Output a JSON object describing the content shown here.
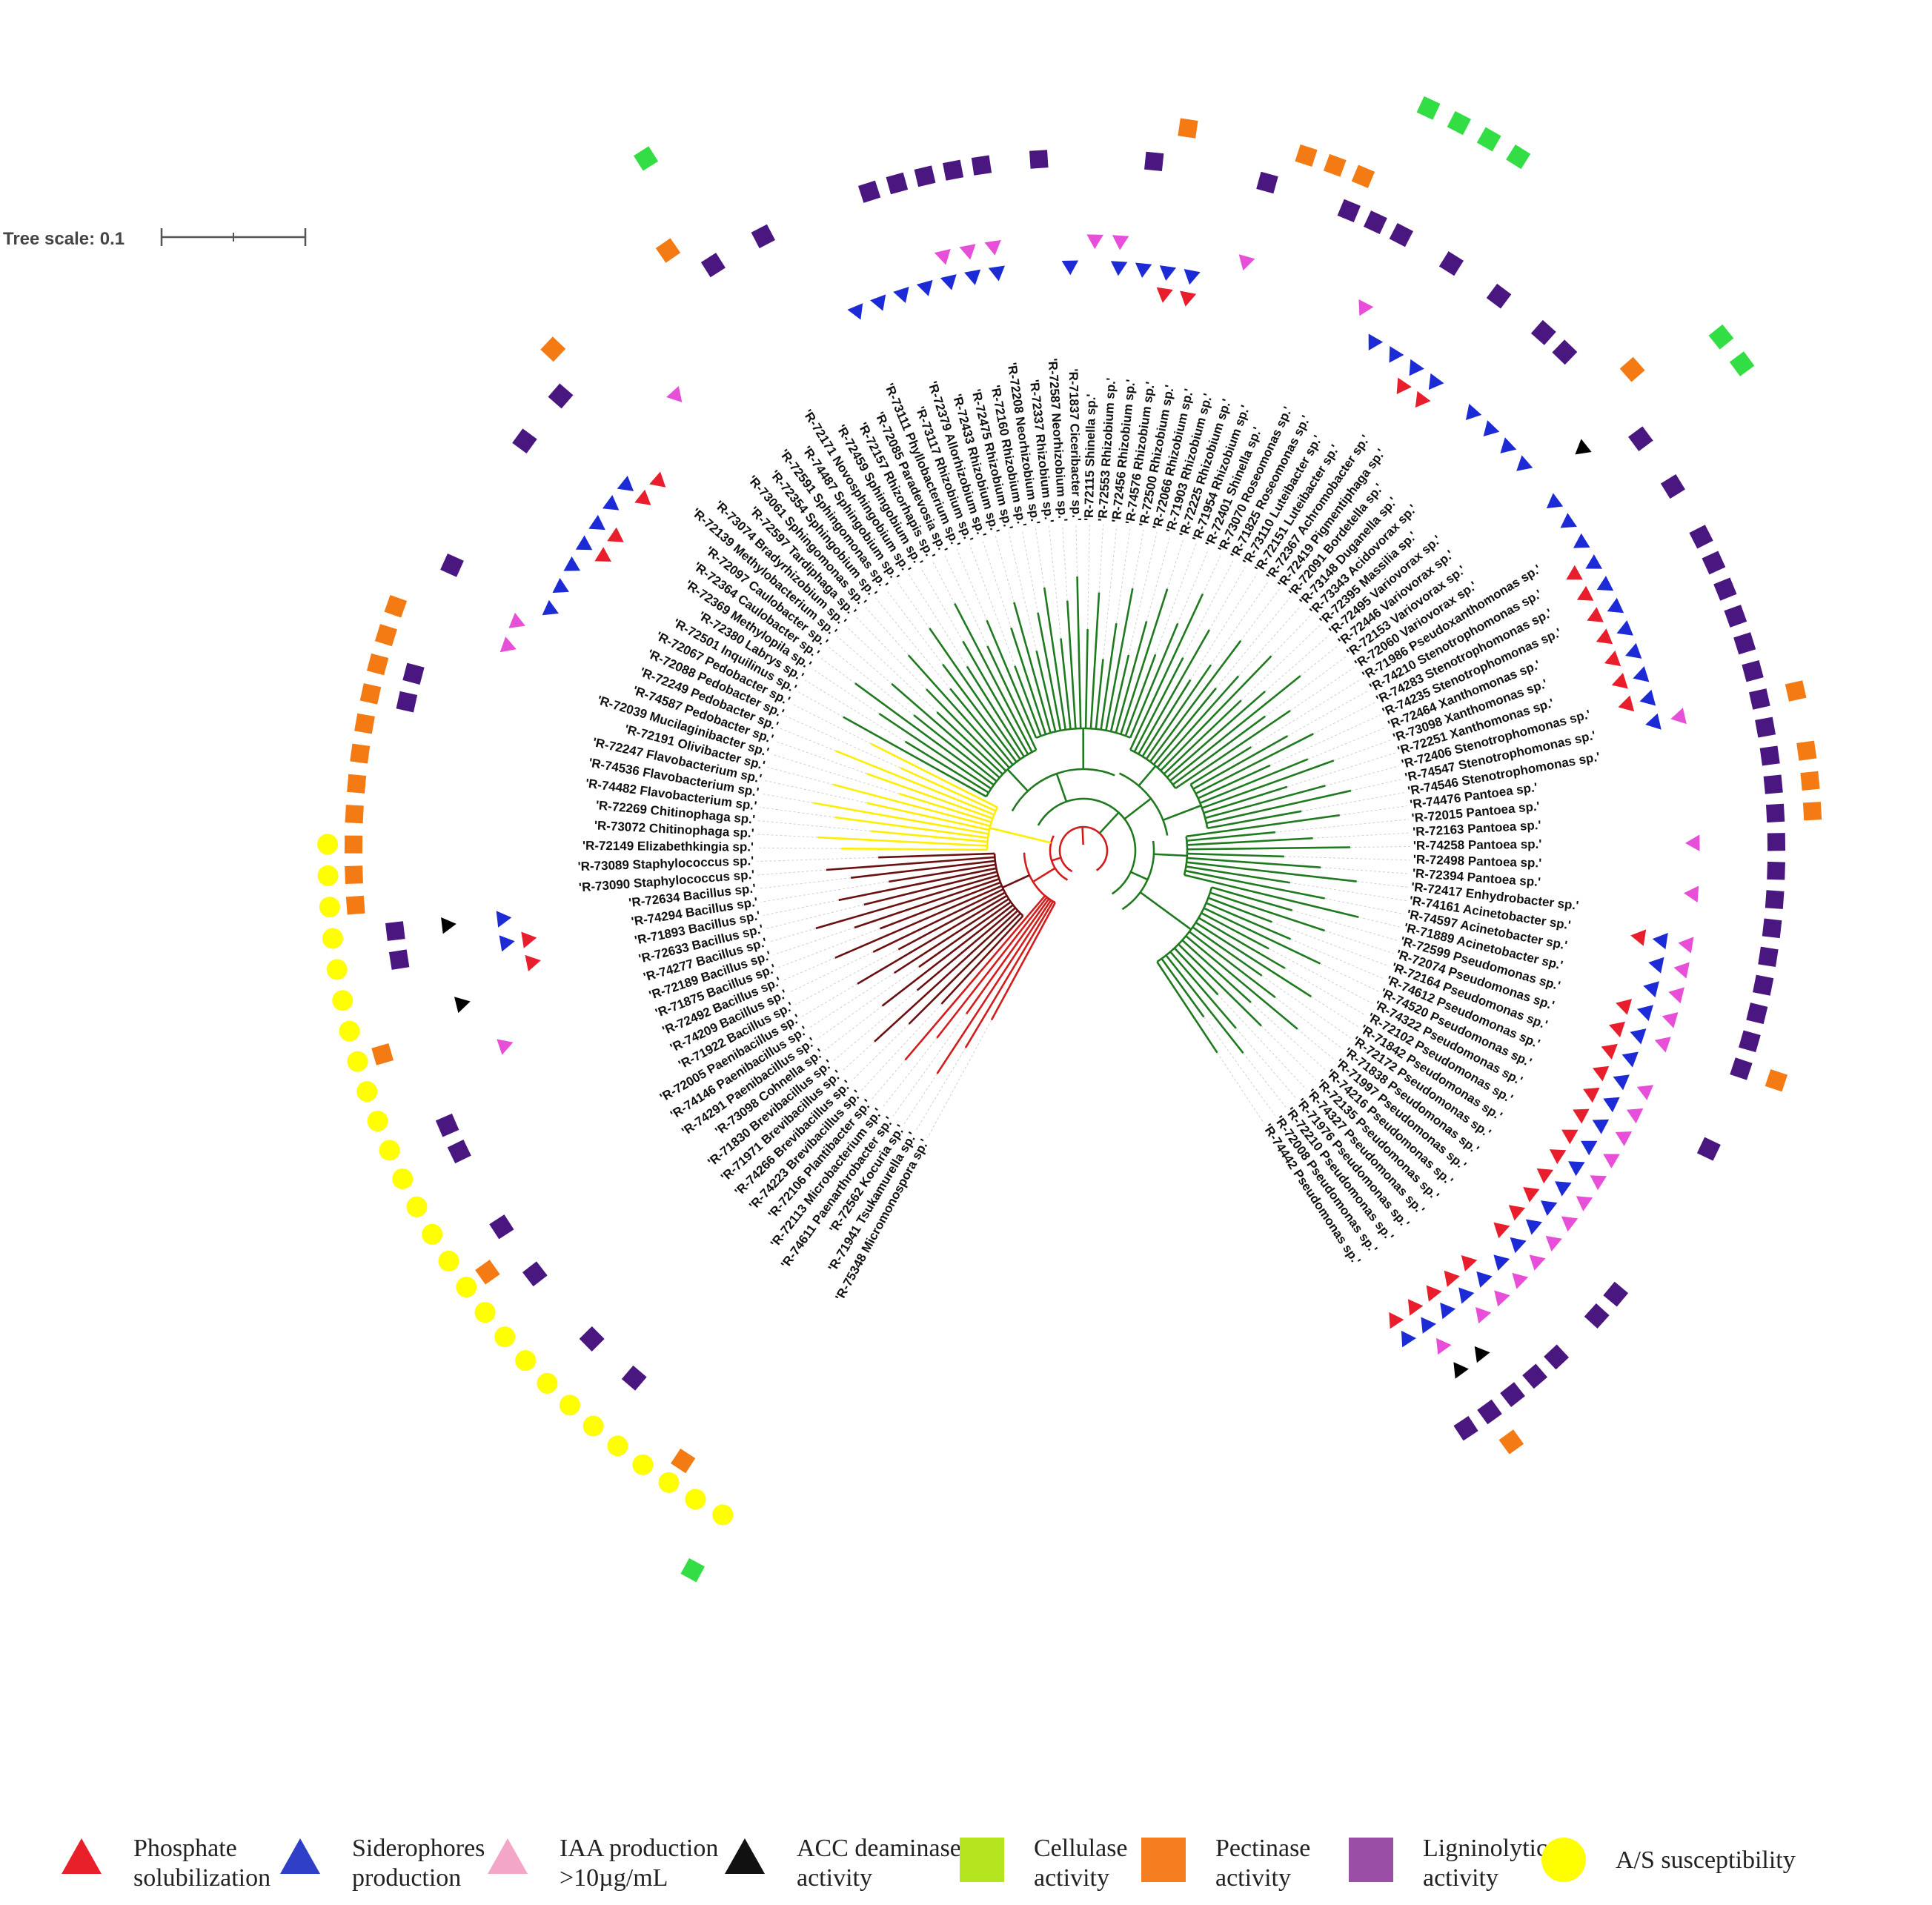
{
  "tree_scale_label": "Tree scale: 0.1",
  "legend": [
    {
      "key": "phosphate",
      "shape": "triangle",
      "color": "#e8202a",
      "lines": [
        "Phosphate",
        "solubilization"
      ]
    },
    {
      "key": "siderophores",
      "shape": "triangle",
      "color": "#2f3fc8",
      "lines": [
        "Siderophores",
        "production"
      ]
    },
    {
      "key": "iaa",
      "shape": "triangle",
      "color": "#f4a6c8",
      "lines": [
        "IAA production",
        ">10µg/mL"
      ]
    },
    {
      "key": "acc",
      "shape": "triangle",
      "color": "#111111",
      "lines": [
        "ACC deaminase",
        "activity"
      ]
    },
    {
      "key": "cellulase",
      "shape": "square",
      "color": "#b4e51e",
      "lines": [
        "Cellulase",
        "activity"
      ]
    },
    {
      "key": "pectinase",
      "shape": "square",
      "color": "#f57f20",
      "lines": [
        "Pectinase",
        "activity"
      ]
    },
    {
      "key": "ligninolytic",
      "shape": "square",
      "color": "#9b4ea6",
      "lines": [
        "Ligninolytic",
        "activity"
      ]
    },
    {
      "key": "as",
      "shape": "circle",
      "color": "#ffff00",
      "lines": [
        "A/S susceptibility"
      ]
    }
  ],
  "clade_colors": {
    "actino": "#d31c1c",
    "firmicutes": "#6b1010",
    "bacteroidetes": "#ffee00",
    "proteo": "#1f7a1f"
  },
  "marker_colors": {
    "phosphate": "#e81e2c",
    "siderophores": "#1c2bd6",
    "iaa": "#e84fd8",
    "acc": "#000000",
    "cellulase": "#33dd44",
    "pectinase": "#f47b14",
    "ligninolytic": "#4a1680",
    "as": "#ffff00"
  },
  "leaves": [
    "'R-75348 Micromonospora sp.'",
    "'R-71941 Tsukamurella sp.'",
    "'R-72562 Kocuria sp.'",
    "'R-74611 Paenarthrobacter sp.'",
    "'R-72113 Microbacterium sp.'",
    "'R-72106 Plantibacter sp.'",
    "'R-74223 Brevibacillus sp.'",
    "'R-74266 Brevibacillus sp.'",
    "'R-71971 Brevibacillus sp.'",
    "'R-71830 Brevibacillus sp.'",
    "'R-73098 Cohnella sp.'",
    "'R-74291 Paenibacillus sp.'",
    "'R-74146 Paenibacillus sp.'",
    "'R-72005 Paenibacillus sp.'",
    "'R-71922 Bacillus sp.'",
    "'R-74209 Bacillus sp.'",
    "'R-72492 Bacillus sp.'",
    "'R-71875 Bacillus sp.'",
    "'R-72189 Bacillus sp.'",
    "'R-74277 Bacillus sp.'",
    "'R-72633 Bacillus sp.'",
    "'R-71893 Bacillus sp.'",
    "'R-74294 Bacillus sp.'",
    "'R-72634 Bacillus sp.'",
    "'R-73090 Staphylococcus sp.'",
    "'R-73089 Staphylococcus sp.'",
    "'R-72149 Elizabethkingia sp.'",
    "'R-73072 Chitinophaga sp.'",
    "'R-72269 Chitinophaga sp.'",
    "'R-74482 Flavobacterium sp.'",
    "'R-74536 Flavobacterium sp.'",
    "'R-72247 Flavobacterium sp.'",
    "'R-72191 Olivibacter sp.'",
    "'R-72039 Mucilaginibacter sp.'",
    "'R-74587 Pedobacter sp.'",
    "'R-72249 Pedobacter sp.'",
    "'R-72088 Pedobacter sp.'",
    "'R-72067 Pedobacter sp.'",
    "'R-72501 Inquilinus sp.'",
    "'R-72380 Labrys sp.'",
    "'R-72369 Methylopila sp.'",
    "'R-72364 Caulobacter sp.'",
    "'R-72097 Caulobacter sp.'",
    "'R-72139 Methylobacterium sp.'",
    "'R-73074 Bradyrhizobium sp.'",
    "'R-72597 Tardiphaga sp.'",
    "'R-73061 Sphingomonas sp.'",
    "'R-72354 Sphingobium sp.'",
    "'R-72591 Sphingomonas sp.'",
    "'R-74487 Sphingobium sp.'",
    "'R-72171 Novosphingobium sp.'",
    "'R-72459 Sphingobium sp.'",
    "'R-72157 Rhizorhapis sp.'",
    "'R-72085 Paradevosia sp.'",
    "'R-73111 Phyllobacterium sp.'",
    "'R-73117 Rhizobium sp.'",
    "'R-72379 Allorhizobium sp.'",
    "'R-72433 Rhizobium sp.'",
    "'R-72475 Rhizobium sp.'",
    "'R-72160 Rhizobium sp.'",
    "'R-72208 Neorhizobium sp.'",
    "'R-72337 Rhizobium sp.'",
    "'R-72587 Neorhizobium sp.'",
    "'R-71837 Ciceribacter sp.'",
    "'R-72115 Shinella sp.'",
    "'R-72553 Rhizobium sp.'",
    "'R-72456 Rhizobium sp.'",
    "'R-74576 Rhizobium sp.'",
    "'R-72500 Rhizobium sp.'",
    "'R-72066 Rhizobium sp.'",
    "'R-71903 Rhizobium sp.'",
    "'R-72225 Rhizobium sp.'",
    "'R-71954 Rhizobium sp.'",
    "'R-72401 Shinella sp.'",
    "'R-73070 Roseomonas sp.'",
    "'R-71825 Roseomonas sp.'",
    "'R-73110 Luteibacter sp.'",
    "'R-72151 Luteibacter sp.'",
    "'R-72367 Achromobacter sp.'",
    "'R-72419 Pigmentiphaga sp.'",
    "'R-72091 Bordetella sp.'",
    "'R-73148 Duganella sp.'",
    "'R-73343 Acidovorax sp.'",
    "'R-72395 Massilia sp.'",
    "'R-72495 Variovorax sp.'",
    "'R-72446 Variovorax sp.'",
    "'R-72153 Variovorax sp.'",
    "'R-72060 Variovorax sp.'",
    "'R-71986 Pseudoxanthomonas sp.'",
    "'R-74210 Stenotrophomonas sp.'",
    "'R-74283 Stenotrophomonas sp.'",
    "'R-74235 Stenotrophomonas sp.'",
    "'R-72464 Xanthomonas sp.'",
    "'R-73098 Xanthomonas sp.'",
    "'R-72251 Xanthomonas sp.'",
    "'R-72406 Stenotrophomonas sp.'",
    "'R-74547 Stenotrophomonas sp.'",
    "'R-74546 Stenotrophomonas sp.'",
    "'R-74476 Pantoea sp.'",
    "'R-72015 Pantoea sp.'",
    "'R-72163 Pantoea sp.'",
    "'R-74258 Pantoea sp.'",
    "'R-72498 Pantoea sp.'",
    "'R-72394 Pantoea sp.'",
    "'R-72417 Enhydrobacter sp.'",
    "'R-74161 Acinetobacter sp.'",
    "'R-74597 Acinetobacter sp.'",
    "'R-71889 Acinetobacter sp.'",
    "'R-72599 Pseudomonas sp.'",
    "'R-72074 Pseudomonas sp.'",
    "'R-72164 Pseudomonas sp.'",
    "'R-74612 Pseudomonas sp.'",
    "'R-74520 Pseudomonas sp.'",
    "'R-74322 Pseudomonas sp.'",
    "'R-72102 Pseudomonas sp.'",
    "'R-71842 Pseudomonas sp.'",
    "'R-72172 Pseudomonas sp.'",
    "'R-71838 Pseudomonas sp.'",
    "'R-71997 Pseudomonas sp.'",
    "'R-74216 Pseudomonas sp.'",
    "'R-72135 Pseudomonas sp.'",
    "'R-74327 Pseudomonas sp.'",
    "'R-71976 Pseudomonas sp.'",
    "'R-72210 Pseudomonas sp.'",
    "'R-72008 Pseudomonas sp.'",
    "'R-74442 Pseudomonas sp.'"
  ]
}
